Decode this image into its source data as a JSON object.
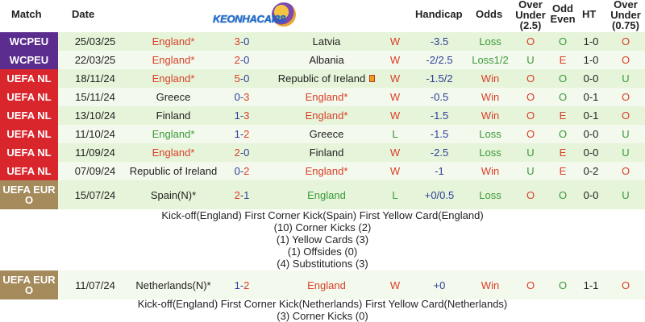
{
  "header": {
    "match": "Match",
    "date": "Date",
    "handicap": "Handicap",
    "odds": "Odds",
    "over_under_25": "Over Under (2.5)",
    "odd_even": "Odd Even",
    "ht": "HT",
    "over_under_075": "Over Under (0.75)"
  },
  "logo": {
    "text": "KEONHACAI88"
  },
  "colors": {
    "WCPEU": "#5b2d8e",
    "UEFA NL": "#d8262c",
    "UEFA EURO": "#a58b5c",
    "row_a": "#e6f4d9",
    "row_b": "#f3f9ec",
    "win": "#d9402a",
    "loss": "#3a9a3a",
    "handicap": "#2d3e9a"
  },
  "matches": [
    {
      "comp": "WCPEU",
      "date": "25/03/25",
      "home": "England*",
      "home_color": "red",
      "score_home": "3",
      "score_away": "0",
      "away": "Latvia",
      "away_color": "blk",
      "result": "W",
      "handicap": "-3.5",
      "odds": "Loss",
      "ou": "O",
      "oe": "O",
      "ht": "1-0",
      "ou075": "O"
    },
    {
      "comp": "WCPEU",
      "date": "22/03/25",
      "home": "England*",
      "home_color": "red",
      "score_home": "2",
      "score_away": "0",
      "away": "Albania",
      "away_color": "blk",
      "result": "W",
      "handicap": "-2/2.5",
      "odds": "Loss1/2",
      "ou": "U",
      "oe": "E",
      "ht": "1-0",
      "ou075": "O"
    },
    {
      "comp": "UEFA NL",
      "date": "18/11/24",
      "home": "England*",
      "home_color": "red",
      "score_home": "5",
      "score_away": "0",
      "away": "Republic of Ireland",
      "away_color": "blk",
      "flag": true,
      "result": "W",
      "handicap": "-1.5/2",
      "odds": "Win",
      "ou": "O",
      "oe": "O",
      "ht": "0-0",
      "ou075": "U"
    },
    {
      "comp": "UEFA NL",
      "date": "15/11/24",
      "home": "Greece",
      "home_color": "blk",
      "score_home": "0",
      "score_away": "3",
      "away": "England*",
      "away_color": "red",
      "result": "W",
      "handicap": "-0.5",
      "odds": "Win",
      "ou": "O",
      "oe": "O",
      "ht": "0-1",
      "ou075": "O"
    },
    {
      "comp": "UEFA NL",
      "date": "13/10/24",
      "home": "Finland",
      "home_color": "blk",
      "score_home": "1",
      "score_away": "3",
      "away": "England*",
      "away_color": "red",
      "result": "W",
      "handicap": "-1.5",
      "odds": "Win",
      "ou": "O",
      "oe": "E",
      "ht": "0-1",
      "ou075": "O"
    },
    {
      "comp": "UEFA NL",
      "date": "11/10/24",
      "home": "England*",
      "home_color": "green",
      "score_home": "1",
      "score_away": "2",
      "away": "Greece",
      "away_color": "blk",
      "result": "L",
      "handicap": "-1.5",
      "odds": "Loss",
      "ou": "O",
      "oe": "O",
      "ht": "0-0",
      "ou075": "U"
    },
    {
      "comp": "UEFA NL",
      "date": "11/09/24",
      "home": "England*",
      "home_color": "red",
      "score_home": "2",
      "score_away": "0",
      "away": "Finland",
      "away_color": "blk",
      "result": "W",
      "handicap": "-2.5",
      "odds": "Loss",
      "ou": "U",
      "oe": "E",
      "ht": "0-0",
      "ou075": "U"
    },
    {
      "comp": "UEFA NL",
      "date": "07/09/24",
      "home": "Republic of Ireland",
      "home_color": "blk",
      "score_home": "0",
      "score_away": "2",
      "away": "England*",
      "away_color": "red",
      "result": "W",
      "handicap": "-1",
      "odds": "Win",
      "ou": "U",
      "oe": "E",
      "ht": "0-2",
      "ou075": "O"
    },
    {
      "comp": "UEFA EURO",
      "date": "15/07/24",
      "home": "Spain(N)*",
      "home_color": "blk",
      "score_home": "2",
      "score_away": "1",
      "away": "England",
      "away_color": "green",
      "result": "L",
      "handicap": "+0/0.5",
      "odds": "Loss",
      "ou": "O",
      "oe": "O",
      "ht": "0-0",
      "ou075": "U"
    },
    {
      "comp": "UEFA EURO",
      "date": "11/07/24",
      "home": "Netherlands(N)*",
      "home_color": "blk",
      "score_home": "1",
      "score_away": "2",
      "away": "England",
      "away_color": "red",
      "result": "W",
      "handicap": "+0",
      "odds": "Win",
      "ou": "O",
      "oe": "O",
      "ht": "1-1",
      "ou075": "O"
    }
  ],
  "details_1": [
    "Kick-off(England)  First Corner Kick(Spain)  First Yellow Card(England)",
    "(10) Corner Kicks (2)",
    "(1) Yellow Cards (3)",
    "(1) Offsides (0)",
    "(4) Substitutions (3)"
  ],
  "details_2": [
    "Kick-off(England)  First Corner Kick(Netherlands)  First Yellow Card(Netherlands)",
    "(3) Corner Kicks (0)"
  ]
}
